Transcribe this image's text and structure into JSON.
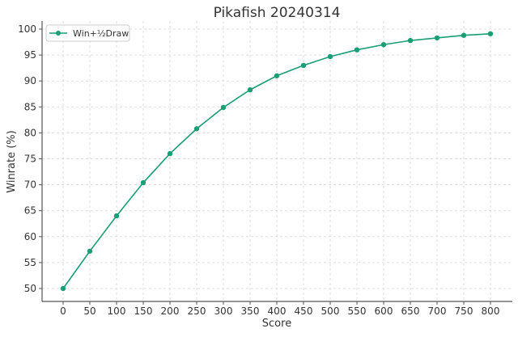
{
  "chart_data": {
    "type": "line",
    "title": "Pikafish 20240314",
    "xlabel": "Score",
    "ylabel": "Winrate (%)",
    "xlim": [
      -40,
      840
    ],
    "ylim": [
      47.5,
      101.5
    ],
    "xticks": [
      0,
      50,
      100,
      150,
      200,
      250,
      300,
      350,
      400,
      450,
      500,
      550,
      600,
      650,
      700,
      750,
      800
    ],
    "yticks": [
      50,
      55,
      60,
      65,
      70,
      75,
      80,
      85,
      90,
      95,
      100
    ],
    "grid": true,
    "legend_position": "top-left",
    "series": [
      {
        "name": "Win+½Draw",
        "color": "#1a9e77",
        "x": [
          0,
          50,
          100,
          150,
          200,
          250,
          300,
          350,
          400,
          450,
          500,
          550,
          600,
          650,
          700,
          750,
          800
        ],
        "y": [
          50.0,
          57.2,
          64.0,
          70.4,
          76.0,
          80.8,
          84.9,
          88.3,
          91.0,
          93.0,
          94.7,
          96.0,
          97.0,
          97.8,
          98.3,
          98.8,
          99.1
        ]
      }
    ]
  }
}
